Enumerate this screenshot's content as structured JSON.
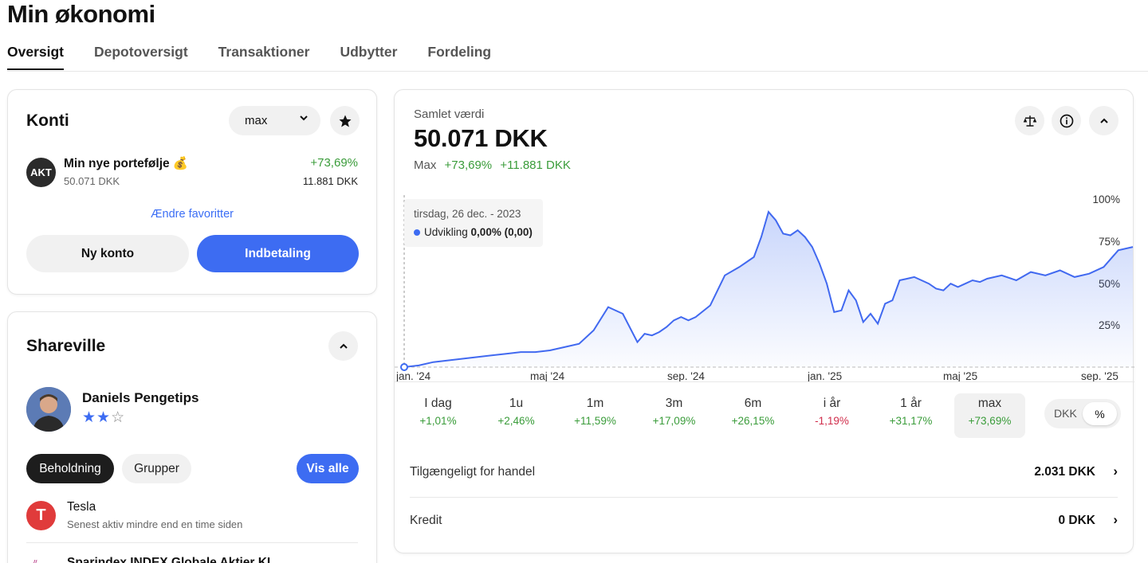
{
  "page": {
    "title": "Min økonomi"
  },
  "tabs": [
    "Oversigt",
    "Depotoversigt",
    "Transaktioner",
    "Udbytter",
    "Fordeling"
  ],
  "konti": {
    "title": "Konti",
    "period_select": "max",
    "account": {
      "badge": "AKT",
      "name": "Min nye portefølje 💰",
      "value": "50.071 DKK",
      "change_pct": "+73,69%",
      "change_abs": "11.881 DKK"
    },
    "favorites_link": "Ændre favoritter",
    "btn_new": "Ny konto",
    "btn_deposit": "Indbetaling"
  },
  "shareville": {
    "title": "Shareville",
    "profile": {
      "name": "Daniels Pengetips",
      "rating": 2,
      "rating_max": 3
    },
    "chips": {
      "holdings": "Beholdning",
      "groups": "Grupper",
      "view_all": "Vis alle"
    },
    "holdings": [
      {
        "name": "Tesla",
        "sub": "Senest aktiv mindre end en time siden"
      },
      {
        "name": "Sparindex INDEX Globale Aktier KL",
        "sub": ""
      }
    ]
  },
  "overview": {
    "label": "Samlet værdi",
    "value": "50.071 DKK",
    "period_label": "Max",
    "change_pct": "+73,69%",
    "change_abs": "+11.881 DKK",
    "tooltip": {
      "date": "tirsdag, 26 dec. - 2023",
      "series": "Udvikling",
      "value": "0,00% (0,00)"
    },
    "periods": [
      {
        "label": "I dag",
        "pct": "+1,01%",
        "neg": false
      },
      {
        "label": "1u",
        "pct": "+2,46%",
        "neg": false
      },
      {
        "label": "1m",
        "pct": "+11,59%",
        "neg": false
      },
      {
        "label": "3m",
        "pct": "+17,09%",
        "neg": false
      },
      {
        "label": "6m",
        "pct": "+26,15%",
        "neg": false
      },
      {
        "label": "i år",
        "pct": "-1,19%",
        "neg": true
      },
      {
        "label": "1 år",
        "pct": "+31,17%",
        "neg": false
      },
      {
        "label": "max",
        "pct": "+73,69%",
        "neg": false,
        "selected": true
      }
    ],
    "currency_toggle": {
      "a": "DKK",
      "b": "%"
    },
    "rows": [
      {
        "key": "Tilgængeligt for handel",
        "value": "2.031 DKK"
      },
      {
        "key": "Kredit",
        "value": "0 DKK"
      }
    ]
  },
  "colors": {
    "accent": "#3d6cf2",
    "positive": "#3a9c3a",
    "negative": "#d02c4a"
  },
  "icons": [
    "star-icon",
    "chevron-down-icon",
    "scale-icon",
    "info-icon",
    "chevron-up-icon",
    "chevron-right-icon"
  ],
  "chart_data": {
    "type": "area",
    "series": [
      {
        "name": "Udvikling",
        "x": [
          0,
          0.02,
          0.04,
          0.06,
          0.08,
          0.1,
          0.12,
          0.14,
          0.16,
          0.18,
          0.2,
          0.22,
          0.24,
          0.26,
          0.28,
          0.3,
          0.32,
          0.33,
          0.34,
          0.35,
          0.36,
          0.37,
          0.38,
          0.39,
          0.4,
          0.42,
          0.44,
          0.46,
          0.47,
          0.48,
          0.49,
          0.5,
          0.51,
          0.52,
          0.53,
          0.54,
          0.55,
          0.56,
          0.57,
          0.58,
          0.59,
          0.6,
          0.61,
          0.62,
          0.63,
          0.64,
          0.65,
          0.66,
          0.67,
          0.68,
          0.69,
          0.7,
          0.71,
          0.72,
          0.73,
          0.74,
          0.75,
          0.76,
          0.77,
          0.78,
          0.79,
          0.8,
          0.82,
          0.84,
          0.86,
          0.88,
          0.9,
          0.92,
          0.94,
          0.96,
          0.98,
          1.0
        ],
        "values": [
          0,
          1,
          3,
          4,
          5,
          6,
          7,
          8,
          9,
          9,
          10,
          12,
          14,
          22,
          36,
          32,
          15,
          20,
          19,
          21,
          24,
          28,
          30,
          28,
          30,
          37,
          55,
          60,
          63,
          66,
          78,
          93,
          88,
          80,
          79,
          82,
          78,
          72,
          62,
          50,
          33,
          34,
          46,
          40,
          27,
          32,
          26,
          38,
          40,
          52,
          53,
          54,
          52,
          50,
          47,
          46,
          50,
          48,
          50,
          52,
          51,
          53,
          55,
          52,
          57,
          55,
          58,
          54,
          56,
          60,
          70,
          72
        ]
      }
    ],
    "x_ticks": [
      "jan. '24",
      "maj '24",
      "sep. '24",
      "jan. '25",
      "maj '25",
      "sep. '25"
    ],
    "y_ticks": [
      "25%",
      "50%",
      "75%",
      "100%"
    ],
    "ylim": [
      0,
      100
    ]
  }
}
